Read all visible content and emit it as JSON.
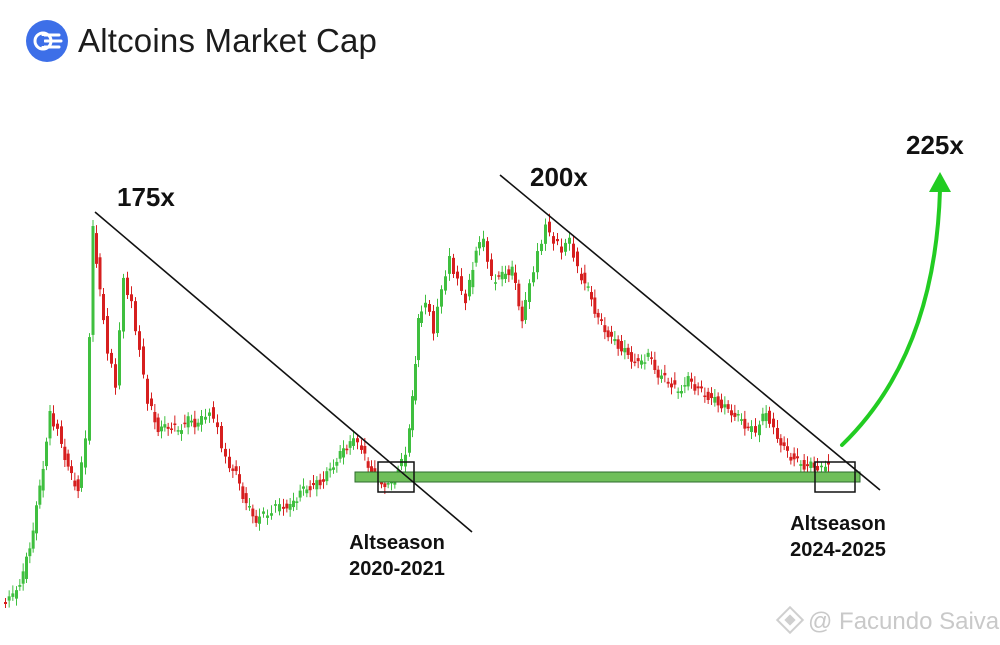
{
  "header": {
    "title": "Altcoins Market Cap",
    "logo_icon": "market-cap-logo-icon",
    "logo_color": "#3d6fe8"
  },
  "watermark": "@ Facundo Saiva",
  "colors": {
    "up": "#3fbf3f",
    "down": "#d61f1f",
    "support": "#6fbf5a",
    "arrow": "#22cc22"
  },
  "chart_data": {
    "type": "candlestick",
    "title": "Altcoins Market Cap",
    "annotations": [
      {
        "text": "175x"
      },
      {
        "text": "200x"
      },
      {
        "text": "225x"
      },
      {
        "text": "Altseason",
        "text2": "2020-2021"
      },
      {
        "text": "Altseason",
        "text2": "2024-2025"
      }
    ],
    "trendlines": 2,
    "support_zone": true,
    "projection_arrow": "up"
  }
}
